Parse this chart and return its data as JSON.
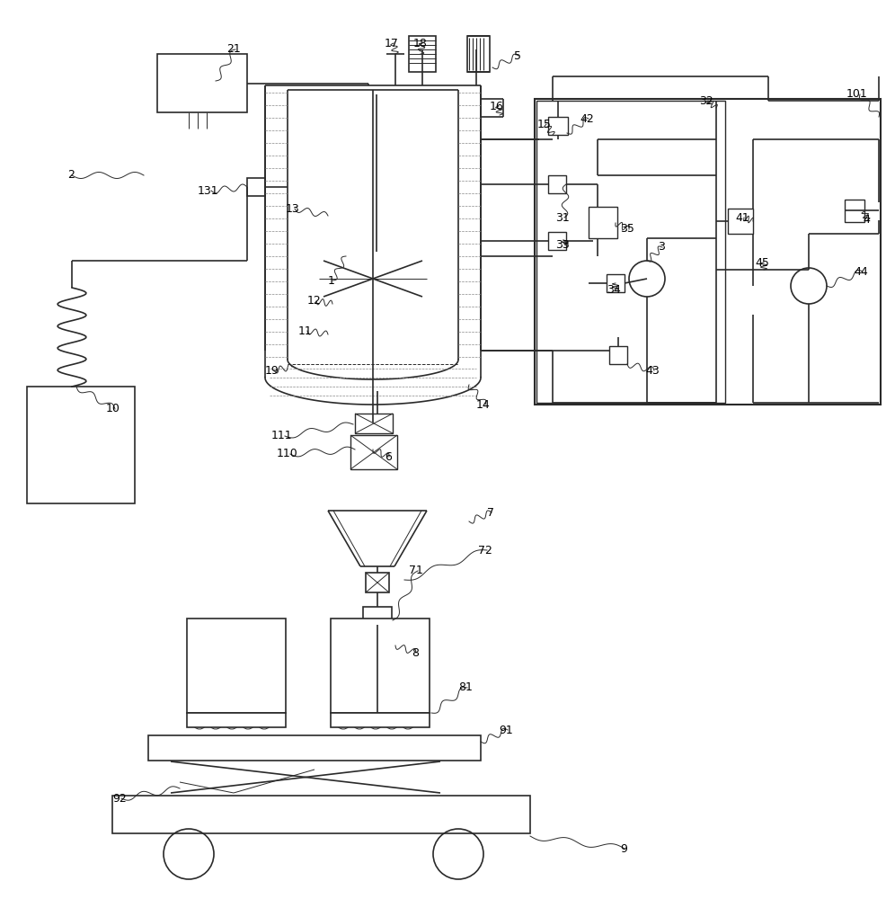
{
  "bg_color": "#ffffff",
  "line_color": "#2a2a2a",
  "lw": 1.2,
  "tlw": 0.7
}
